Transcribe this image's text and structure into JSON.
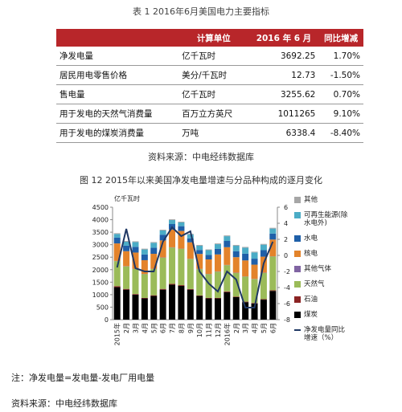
{
  "table_title": "表 1 2016年6月美国电力主要指标",
  "table": {
    "columns": [
      "",
      "计算单位",
      "2016 年 6 月",
      "同比增减"
    ],
    "rows": [
      [
        "净发电量",
        "亿千瓦时",
        "3692.25",
        "1.70%"
      ],
      [
        "居民用电零售价格",
        "美分/千瓦时",
        "12.73",
        "-1.50%"
      ],
      [
        "售电量",
        "亿千瓦时",
        "3255.62",
        "0.70%"
      ],
      [
        "用于发电的天然气消费量",
        "百万立方英尺",
        "1011265",
        "9.10%"
      ],
      [
        "用于发电的煤炭消费量",
        "万吨",
        "6338.4",
        "-8.40%"
      ]
    ]
  },
  "table_source": "资料来源：中电经纬数据库",
  "chart_data": {
    "type": "bar",
    "stacked": true,
    "title": "图 12  2015年以来美国净发电量增速与分品种构成的逐月变化",
    "y_label": "亿千瓦时",
    "categories": [
      "2015年",
      "2月",
      "3月",
      "4月",
      "5月",
      "6月",
      "7月",
      "8月",
      "9月",
      "10月",
      "11月",
      "12月",
      "2016年",
      "2月",
      "3月",
      "4月",
      "5月",
      "6月"
    ],
    "series": [
      {
        "name": "煤炭",
        "color": "#000000",
        "values": [
          1300,
          1200,
          1000,
          850,
          950,
          1200,
          1400,
          1350,
          1200,
          950,
          850,
          850,
          1100,
          900,
          700,
          650,
          800,
          1150
        ]
      },
      {
        "name": "石油",
        "color": "#8b2323",
        "values": [
          40,
          30,
          25,
          20,
          25,
          30,
          35,
          30,
          25,
          20,
          20,
          20,
          30,
          20,
          20,
          20,
          20,
          25
        ]
      },
      {
        "name": "天然气",
        "color": "#9bbb59",
        "values": [
          1000,
          900,
          1000,
          950,
          1050,
          1250,
          1450,
          1450,
          1200,
          1050,
          950,
          1050,
          1050,
          950,
          1000,
          950,
          1050,
          1350
        ]
      },
      {
        "name": "其他气体",
        "color": "#8064a2",
        "values": [
          10,
          10,
          10,
          10,
          10,
          10,
          10,
          10,
          10,
          10,
          10,
          10,
          10,
          10,
          10,
          10,
          10,
          10
        ]
      },
      {
        "name": "核电",
        "color": "#e3832b",
        "values": [
          700,
          600,
          650,
          550,
          600,
          680,
          710,
          710,
          660,
          600,
          580,
          680,
          710,
          620,
          640,
          570,
          640,
          670
        ]
      },
      {
        "name": "水电",
        "color": "#1f5fa8",
        "values": [
          230,
          220,
          230,
          230,
          240,
          230,
          220,
          190,
          160,
          160,
          180,
          220,
          250,
          240,
          270,
          240,
          260,
          240
        ]
      },
      {
        "name": "可再生能源(除水电外)",
        "color": "#4bacc6",
        "values": [
          150,
          160,
          190,
          200,
          200,
          170,
          160,
          150,
          150,
          170,
          190,
          190,
          190,
          220,
          240,
          250,
          220,
          200
        ]
      },
      {
        "name": "其他",
        "color": "#a6a6a6",
        "values": [
          30,
          30,
          30,
          30,
          30,
          30,
          30,
          30,
          30,
          30,
          30,
          30,
          30,
          30,
          30,
          30,
          30,
          30
        ]
      },
      {
        "name": "净发电量同比增速（%）",
        "type": "line",
        "axis": "y2",
        "color": "#1f3864",
        "values": [
          -1.5,
          3.3,
          -1.6,
          -2,
          -2,
          1.7,
          3.5,
          2.4,
          3,
          -2,
          -3.5,
          -4.5,
          -2,
          -3,
          -6.5,
          -6.5,
          -1,
          1.7
        ]
      }
    ],
    "ylim": [
      0,
      4500
    ],
    "yticks": [
      0,
      500,
      1000,
      1500,
      2000,
      2500,
      3000,
      3500,
      4000,
      4500
    ],
    "y2lim": [
      -8,
      6
    ],
    "y2ticks": [
      -8,
      -6,
      -4,
      -2,
      0,
      2,
      4,
      6
    ]
  },
  "note": "注：净发电量=发电量-发电厂用电量",
  "source": "资料来源：中电经纬数据库"
}
